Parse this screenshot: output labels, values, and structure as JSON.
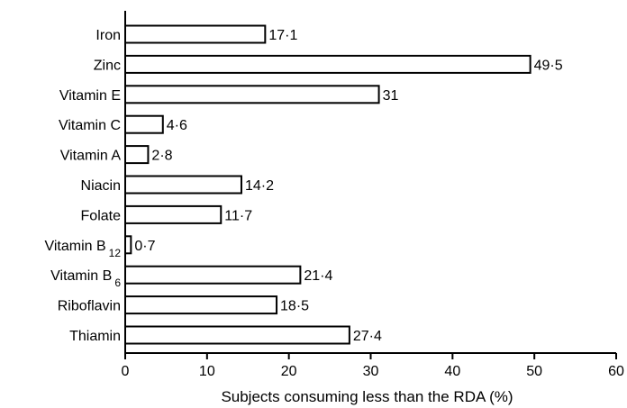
{
  "chart_data": {
    "type": "bar",
    "orientation": "horizontal",
    "categories": [
      {
        "text": "Iron"
      },
      {
        "text": "Zinc"
      },
      {
        "text": "Vitamin E"
      },
      {
        "text": "Vitamin C"
      },
      {
        "text": "Vitamin A"
      },
      {
        "text": "Niacin"
      },
      {
        "text": "Folate"
      },
      {
        "text": "Vitamin B",
        "sub": "12"
      },
      {
        "text": "Vitamin B",
        "sub": "6"
      },
      {
        "text": "Riboflavin"
      },
      {
        "text": "Thiamin"
      }
    ],
    "values": [
      17.1,
      49.5,
      31,
      4.6,
      2.8,
      14.2,
      11.7,
      0.7,
      21.4,
      18.5,
      27.4
    ],
    "value_labels": [
      "17·1",
      "49·5",
      "31",
      "4·6",
      "2·8",
      "14·2",
      "11·7",
      "0·7",
      "21·4",
      "18·5",
      "27·4"
    ],
    "xlabel": "Subjects consuming less than the RDA (%)",
    "ylabel": "",
    "xlim": [
      0,
      60
    ],
    "xticks": [
      0,
      10,
      20,
      30,
      40,
      50,
      60
    ],
    "grid": false,
    "colors": {
      "bar_fill": "#ffffff",
      "bar_stroke": "#000000",
      "axis": "#000000"
    }
  }
}
